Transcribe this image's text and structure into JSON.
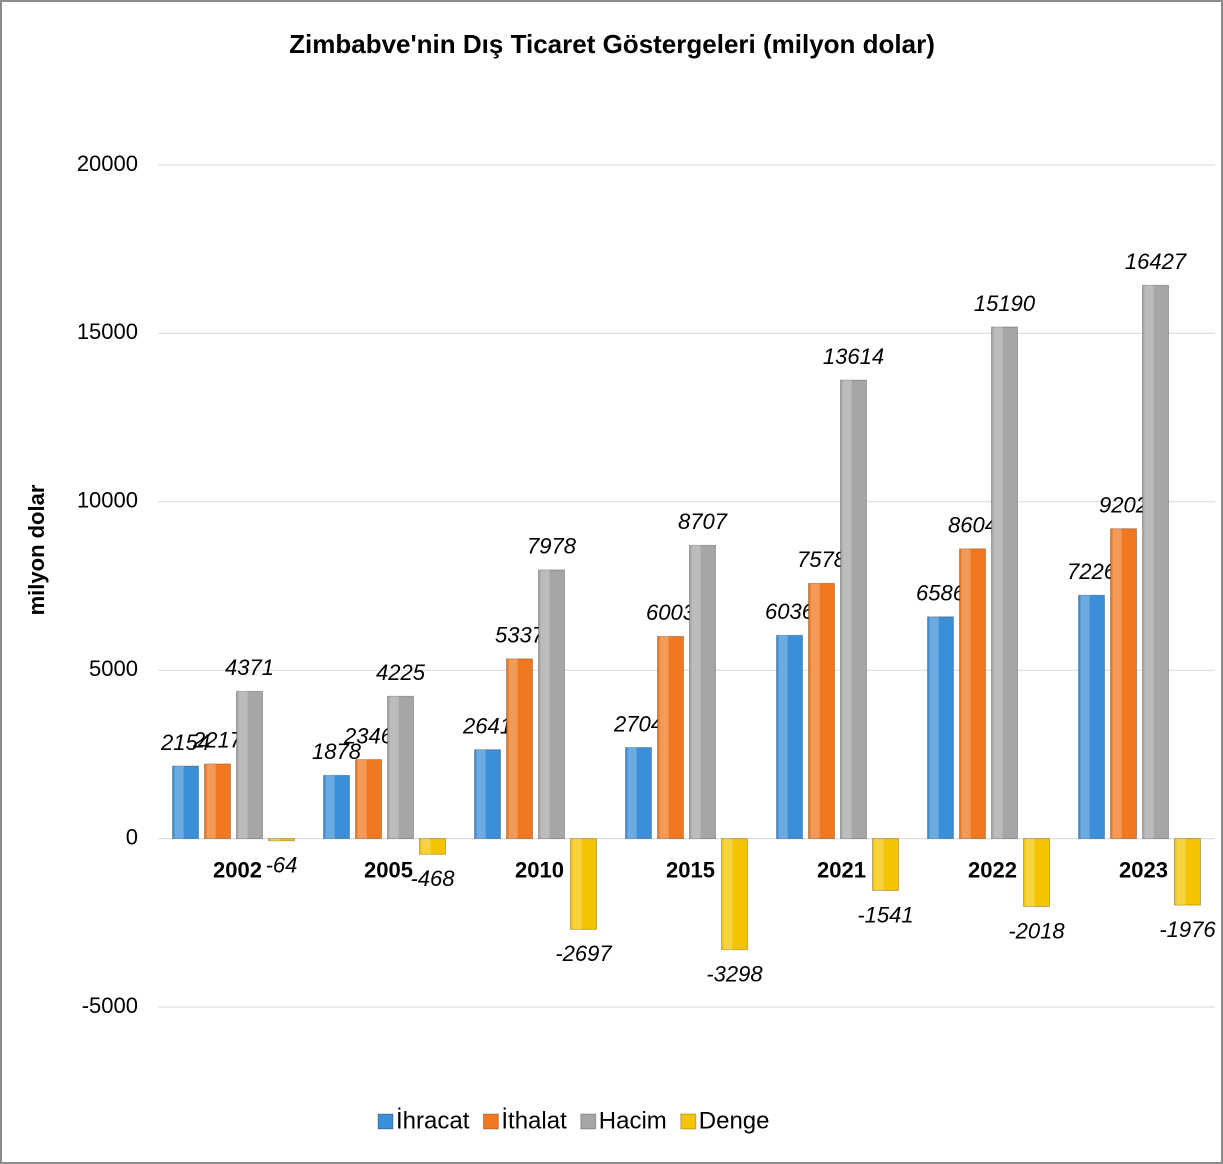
{
  "chart_data": {
    "type": "bar",
    "title": "Zimbabve'nin Dış Ticaret Göstergeleri  (milyon dolar)",
    "y_label": "milyon dolar",
    "categories": [
      "2002",
      "2005",
      "2010",
      "2015",
      "2021",
      "2022",
      "2023"
    ],
    "series": [
      {
        "name": "İhracat",
        "color": "#3a8fd8",
        "values": [
          2154,
          1878,
          2641,
          2704,
          6036,
          6586,
          7226
        ]
      },
      {
        "name": "İthalat",
        "color": "#f07820",
        "values": [
          2217,
          2346,
          5337,
          6003,
          7578,
          8604,
          9202
        ]
      },
      {
        "name": "Hacim",
        "color": "#a6a6a6",
        "values": [
          4371,
          4225,
          7978,
          8707,
          13614,
          15190,
          16427
        ]
      },
      {
        "name": "Denge",
        "color": "#f5c400",
        "values": [
          -64,
          -468,
          -2697,
          -3298,
          -1541,
          -2018,
          -1976
        ]
      }
    ],
    "ylim": [
      -5000,
      20000
    ],
    "yticks": [
      -5000,
      0,
      5000,
      10000,
      15000,
      20000
    ],
    "grid": true,
    "legend": "bottom"
  }
}
